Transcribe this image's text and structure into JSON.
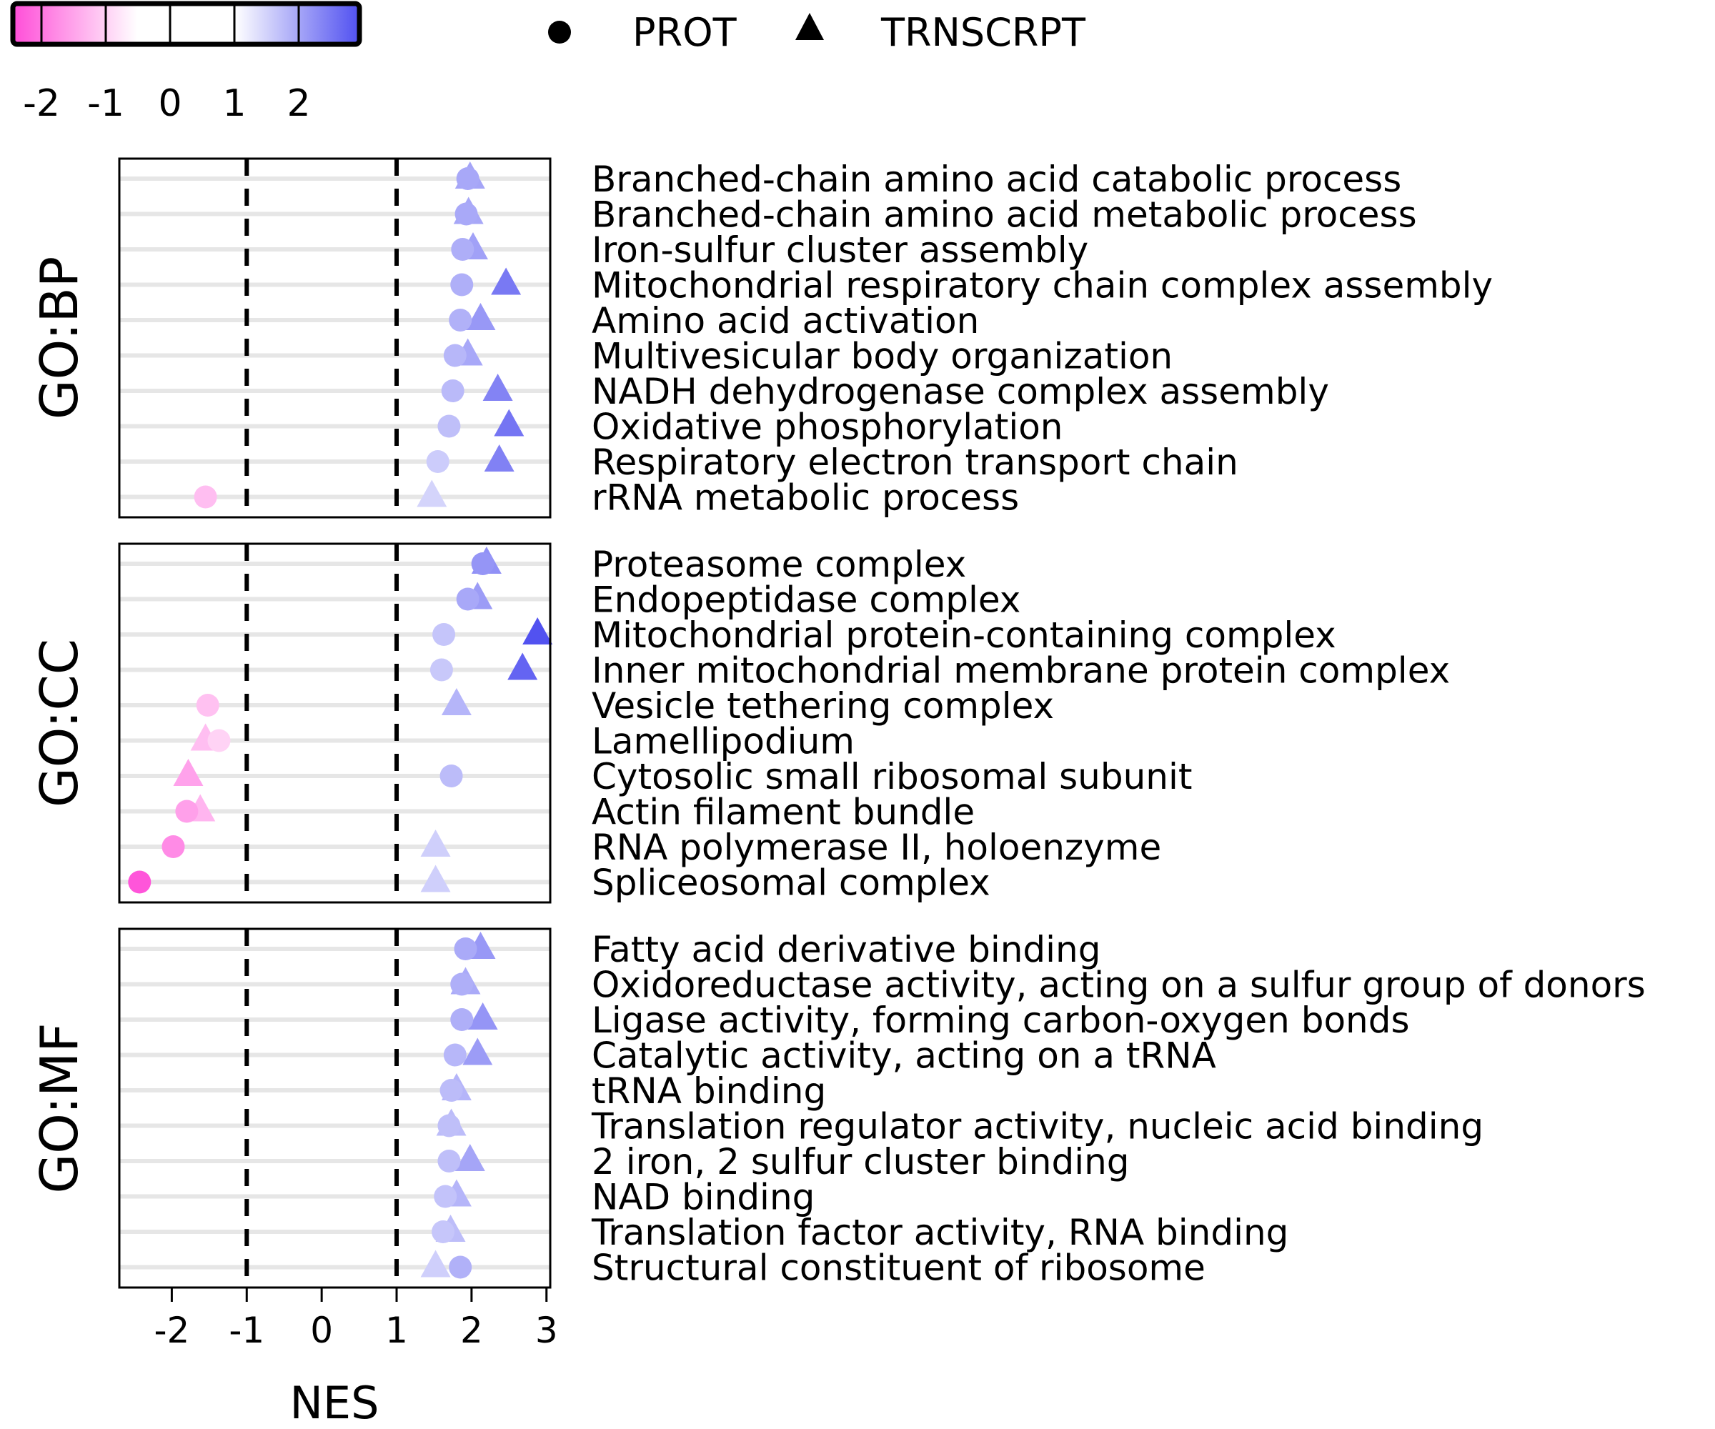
{
  "legend": {
    "prot_label": "PROT",
    "trnscrpt_label": "TRNSCRPT"
  },
  "colorbar": {
    "ticks": [
      "-2",
      "-1",
      "0",
      "1",
      "2"
    ],
    "low_color": "#ff4dd8",
    "mid_color": "#ffffff",
    "high_color": "#5050f0"
  },
  "chart_data": {
    "type": "scatter",
    "xlabel": "NES",
    "xlim": [
      -2.7,
      3.05
    ],
    "xticks": [
      -2,
      -1,
      0,
      1,
      2,
      3
    ],
    "xtick_labels": [
      "-2",
      "-1",
      "0",
      "1",
      "2",
      "3"
    ],
    "threshold_lines": [
      -1,
      1
    ],
    "panels": [
      {
        "name": "GO:BP",
        "terms": [
          {
            "label": "Branched-chain amino acid catabolic process",
            "prot": 1.95,
            "trnscrpt": 1.98
          },
          {
            "label": "Branched-chain amino acid metabolic process",
            "prot": 1.93,
            "trnscrpt": 1.96
          },
          {
            "label": "Iron-sulfur cluster assembly",
            "prot": 1.88,
            "trnscrpt": 2.02
          },
          {
            "label": "Mitochondrial respiratory chain complex assembly",
            "prot": 1.87,
            "trnscrpt": 2.46
          },
          {
            "label": "Amino acid activation",
            "prot": 1.85,
            "trnscrpt": 2.12
          },
          {
            "label": "Multivesicular body organization",
            "prot": 1.78,
            "trnscrpt": 1.95
          },
          {
            "label": "NADH dehydrogenase complex assembly",
            "prot": 1.75,
            "trnscrpt": 2.35
          },
          {
            "label": "Oxidative phosphorylation",
            "prot": 1.7,
            "trnscrpt": 2.5
          },
          {
            "label": "Respiratory electron transport chain",
            "prot": 1.55,
            "trnscrpt": 2.37
          },
          {
            "label": "rRNA metabolic process",
            "prot": -1.55,
            "trnscrpt": 1.47
          }
        ]
      },
      {
        "name": "GO:CC",
        "terms": [
          {
            "label": "Proteasome complex",
            "prot": 2.15,
            "trnscrpt": 2.2
          },
          {
            "label": "Endopeptidase complex",
            "prot": 1.95,
            "trnscrpt": 2.08
          },
          {
            "label": "Mitochondrial protein-containing complex",
            "prot": 1.63,
            "trnscrpt": 2.88
          },
          {
            "label": "Inner mitochondrial membrane protein complex",
            "prot": 1.6,
            "trnscrpt": 2.68
          },
          {
            "label": "Vesicle tethering complex",
            "prot": -1.52,
            "trnscrpt": 1.8
          },
          {
            "label": "Lamellipodium",
            "prot": -1.37,
            "trnscrpt": -1.55
          },
          {
            "label": "Cytosolic small ribosomal subunit",
            "prot": 1.73,
            "trnscrpt": -1.78
          },
          {
            "label": "Actin filament bundle",
            "prot": -1.8,
            "trnscrpt": -1.62
          },
          {
            "label": "RNA polymerase II, holoenzyme",
            "prot": -1.98,
            "trnscrpt": 1.52
          },
          {
            "label": "Spliceosomal complex",
            "prot": -2.43,
            "trnscrpt": 1.52
          }
        ]
      },
      {
        "name": "GO:MF",
        "terms": [
          {
            "label": "Fatty acid derivative binding",
            "prot": 1.92,
            "trnscrpt": 2.12
          },
          {
            "label": "Oxidoreductase activity, acting on a sulfur group of donors",
            "prot": 1.87,
            "trnscrpt": 1.92
          },
          {
            "label": "Ligase activity, forming carbon-oxygen bonds",
            "prot": 1.87,
            "trnscrpt": 2.15
          },
          {
            "label": "Catalytic activity, acting on a tRNA",
            "prot": 1.78,
            "trnscrpt": 2.08
          },
          {
            "label": "tRNA binding",
            "prot": 1.73,
            "trnscrpt": 1.8
          },
          {
            "label": "Translation regulator activity, nucleic acid binding",
            "prot": 1.7,
            "trnscrpt": 1.73
          },
          {
            "label": "2 iron, 2 sulfur cluster binding",
            "prot": 1.7,
            "trnscrpt": 1.98
          },
          {
            "label": "NAD binding",
            "prot": 1.65,
            "trnscrpt": 1.8
          },
          {
            "label": "Translation factor activity, RNA binding",
            "prot": 1.62,
            "trnscrpt": 1.72
          },
          {
            "label": "Structural constituent of ribosome",
            "prot": 1.85,
            "trnscrpt": 1.52
          }
        ]
      }
    ]
  }
}
